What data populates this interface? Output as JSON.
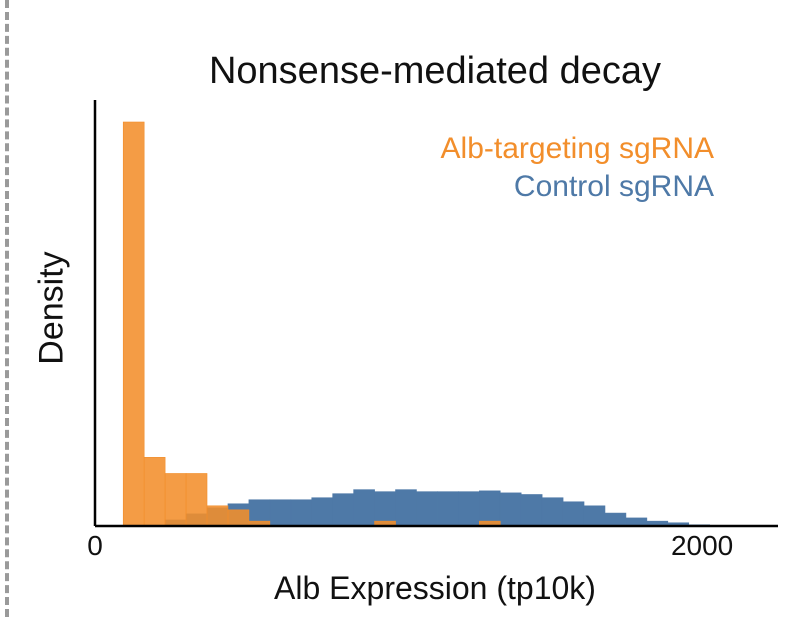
{
  "chart_data": {
    "type": "histogram",
    "title": "Nonsense-mediated decay",
    "xlabel": "Alb Expression (tp10k)",
    "ylabel": "Density",
    "xticks": [
      "0",
      "2000"
    ],
    "xlim": [
      0,
      2250
    ],
    "ylim": [
      0,
      100
    ],
    "bin_width": 69,
    "series": [
      {
        "name": "Alb-targeting sgRNA",
        "color": "#f28e2b",
        "bin_starts": [
          93,
          162,
          231,
          300,
          369,
          438,
          507,
          576,
          645,
          714,
          783,
          852,
          921,
          990,
          1059,
          1128,
          1197,
          1266,
          1335,
          1404
        ],
        "values": [
          100,
          17,
          13,
          13,
          5,
          4,
          1.2,
          0,
          0,
          0,
          0,
          0,
          1.2,
          0,
          0,
          0,
          0,
          1.2,
          0,
          0
        ]
      },
      {
        "name": "Control sgRNA",
        "color": "#4e79a7",
        "bin_starts": [
          231,
          300,
          369,
          438,
          507,
          576,
          645,
          714,
          783,
          852,
          921,
          990,
          1059,
          1128,
          1197,
          1266,
          1335,
          1404,
          1473,
          1542,
          1611,
          1680,
          1749,
          1818,
          1887,
          1956
        ],
        "values": [
          1.5,
          3,
          4.5,
          5.5,
          6.5,
          6.5,
          6.5,
          7,
          8,
          9,
          8.5,
          9,
          8.5,
          8.5,
          8.5,
          8.7,
          8.2,
          7.8,
          7,
          6,
          5,
          3.2,
          2,
          1.2,
          0.8,
          0.3
        ]
      }
    ],
    "legend": [
      "Alb-targeting sgRNA",
      "Control sgRNA"
    ]
  }
}
